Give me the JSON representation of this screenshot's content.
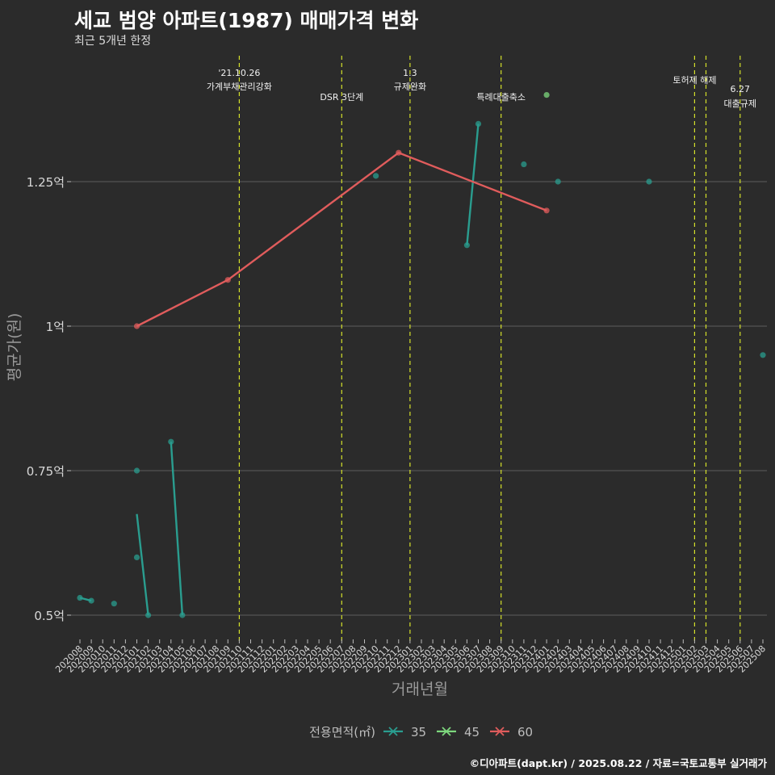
{
  "header": {
    "title": "세교 범양 아파트(1987) 매매가격 변화",
    "subtitle": "최근 5개년 한정"
  },
  "caption": "©디아파트(dapt.kr) / 2025.08.22 / 자료=국토교통부 실거래가",
  "chart_data": {
    "type": "line",
    "title": "세교 범양 아파트(1987) 매매가격 변화",
    "subtitle": "최근 5개년 한정",
    "xlabel": "거래년월",
    "ylabel": "평균가(원)",
    "ylim": [
      0.46,
      1.48
    ],
    "x_ticks": [
      "202008",
      "202009",
      "202010",
      "202011",
      "202012",
      "202101",
      "202102",
      "202103",
      "202104",
      "202105",
      "202106",
      "202107",
      "202108",
      "202109",
      "202110",
      "202111",
      "202112",
      "202201",
      "202202",
      "202203",
      "202204",
      "202205",
      "202206",
      "202207",
      "202208",
      "202209",
      "202210",
      "202211",
      "202212",
      "202301",
      "202302",
      "202303",
      "202304",
      "202305",
      "202306",
      "202307",
      "202308",
      "202309",
      "202310",
      "202311",
      "202312",
      "202401",
      "202402",
      "202403",
      "202404",
      "202405",
      "202406",
      "202407",
      "202408",
      "202409",
      "202410",
      "202411",
      "202412",
      "202501",
      "202502",
      "202503",
      "202504",
      "202505",
      "202506",
      "202507",
      "202508"
    ],
    "y_ticks": [
      {
        "value": 0.5,
        "label": "0.5억"
      },
      {
        "value": 0.75,
        "label": "0.75억"
      },
      {
        "value": 1.0,
        "label": "1억"
      },
      {
        "value": 1.25,
        "label": "1.25억"
      }
    ],
    "legend_title": "전용면적(㎡)",
    "series": [
      {
        "name": "35",
        "color": "#2a9d8f",
        "points": [
          {
            "x": "202008",
            "y": 0.53
          },
          {
            "x": "202009",
            "y": 0.525
          },
          {
            "x": "202011",
            "y": 0.52
          },
          {
            "x": "202101",
            "y": 0.75
          },
          {
            "x": "202101",
            "y": 0.6
          },
          {
            "x": "202102",
            "y": 0.5
          },
          {
            "x": "202104",
            "y": 0.8
          },
          {
            "x": "202105",
            "y": 0.5
          },
          {
            "x": "202210",
            "y": 1.26
          },
          {
            "x": "202306",
            "y": 1.14
          },
          {
            "x": "202307",
            "y": 1.35
          },
          {
            "x": "202311",
            "y": 1.28
          },
          {
            "x": "202402",
            "y": 1.25
          },
          {
            "x": "202410",
            "y": 1.25
          },
          {
            "x": "202508",
            "y": 0.95
          }
        ],
        "lines": [
          [
            {
              "x": "202008",
              "y": 0.53
            },
            {
              "x": "202009",
              "y": 0.525
            }
          ],
          [
            {
              "x": "202101",
              "y": 0.675
            },
            {
              "x": "202102",
              "y": 0.5
            }
          ],
          [
            {
              "x": "202104",
              "y": 0.8
            },
            {
              "x": "202105",
              "y": 0.5
            }
          ],
          [
            {
              "x": "202306",
              "y": 1.14
            },
            {
              "x": "202307",
              "y": 1.35
            }
          ]
        ]
      },
      {
        "name": "45",
        "color": "#7dd87d",
        "points": [
          {
            "x": "202401",
            "y": 1.4
          }
        ],
        "lines": []
      },
      {
        "name": "60",
        "color": "#e05c5c",
        "points": [
          {
            "x": "202101",
            "y": 1.0
          },
          {
            "x": "202109",
            "y": 1.08
          },
          {
            "x": "202212",
            "y": 1.3
          },
          {
            "x": "202401",
            "y": 1.2
          }
        ],
        "lines": [
          [
            {
              "x": "202101",
              "y": 1.0
            },
            {
              "x": "202109",
              "y": 1.08
            },
            {
              "x": "202212",
              "y": 1.3
            },
            {
              "x": "202401",
              "y": 1.2
            }
          ]
        ]
      }
    ],
    "events": [
      {
        "x": "202110",
        "label": [
          "'21.10.26",
          "가계부채관리강화"
        ],
        "row": 0
      },
      {
        "x": "202207",
        "label": [
          "DSR 3단계"
        ],
        "row": 1
      },
      {
        "x": "202301",
        "label": [
          "1.3",
          "규제완화"
        ],
        "row": 0
      },
      {
        "x": "202309",
        "label": [
          "특례대출축소"
        ],
        "row": 1
      },
      {
        "x": "202502",
        "label": [
          "토허제 해제"
        ],
        "row": 0
      },
      {
        "x": "202503",
        "label": [],
        "row": 0
      },
      {
        "x": "202506",
        "label": [
          "6.27",
          "대출규제"
        ],
        "row": 2
      }
    ]
  }
}
